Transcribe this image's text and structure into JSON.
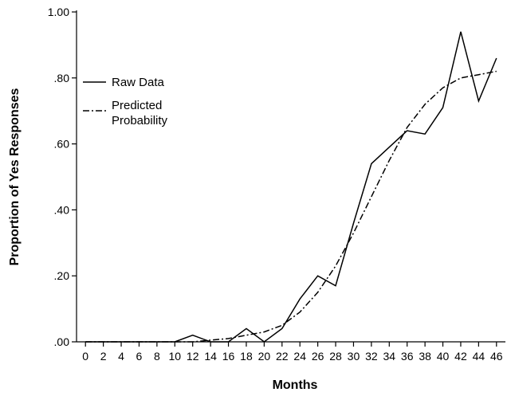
{
  "chart_data": {
    "type": "line",
    "title": "",
    "xlabel": "Months",
    "ylabel": "Proportion of Yes Responses",
    "x": [
      0,
      2,
      4,
      6,
      8,
      10,
      12,
      14,
      16,
      18,
      20,
      22,
      24,
      26,
      28,
      30,
      32,
      34,
      36,
      38,
      40,
      42,
      44,
      46
    ],
    "x_tick_labels": [
      "0",
      "2",
      "4",
      "6",
      "8",
      "10",
      "12",
      "14",
      "16",
      "18",
      "20",
      "22",
      "24",
      "26",
      "28",
      "30",
      "32",
      "34",
      "36",
      "38",
      "40",
      "42",
      "44",
      "46"
    ],
    "y_ticks": [
      0,
      0.2,
      0.4,
      0.6,
      0.8,
      1.0
    ],
    "y_tick_labels": [
      ".00",
      ".20",
      ".40",
      ".60",
      ".80",
      "1.00"
    ],
    "xlim": [
      -1,
      47
    ],
    "ylim": [
      0,
      1.0
    ],
    "grid": false,
    "legend_position": "top-left",
    "series": [
      {
        "name": "Raw Data",
        "style": "solid",
        "values": [
          0,
          0,
          0,
          0,
          0,
          0,
          0.02,
          0,
          0,
          0.04,
          0,
          0.04,
          0.13,
          0.2,
          0.17,
          0.36,
          0.54,
          0.59,
          0.64,
          0.63,
          0.71,
          0.94,
          0.73,
          0.86
        ]
      },
      {
        "name": "Predicted Probability",
        "legend_lines": [
          "Predicted",
          "Probability"
        ],
        "style": "dash-dot",
        "values": [
          0,
          0,
          0,
          0,
          0,
          0,
          0,
          0.005,
          0.01,
          0.02,
          0.03,
          0.05,
          0.09,
          0.15,
          0.23,
          0.33,
          0.44,
          0.55,
          0.65,
          0.72,
          0.77,
          0.8,
          0.81,
          0.82
        ]
      }
    ]
  }
}
